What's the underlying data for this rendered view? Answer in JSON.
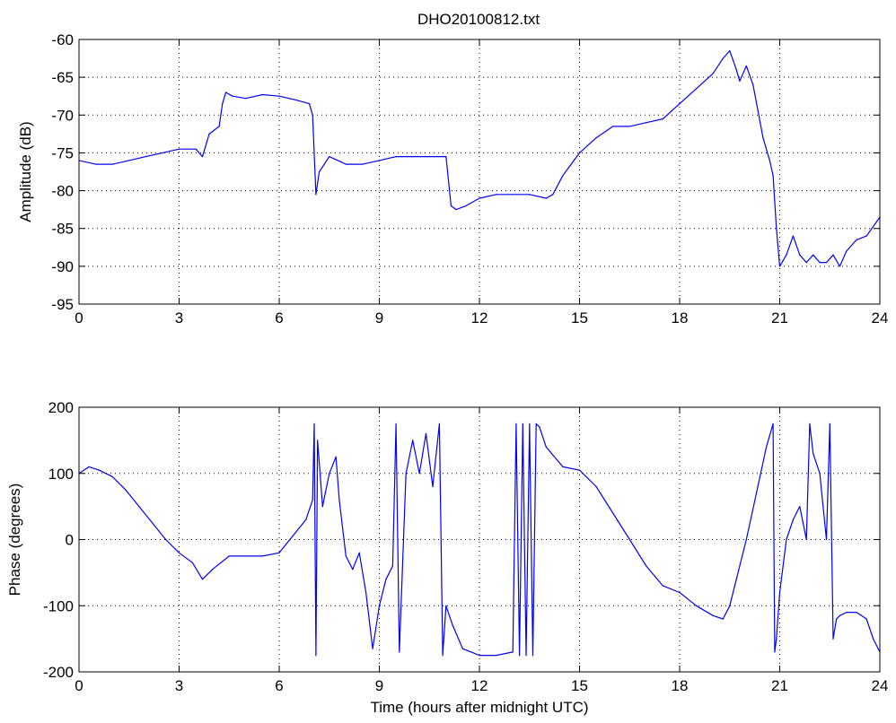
{
  "figure": {
    "title": "DHO20100812.txt"
  },
  "chart_data": [
    {
      "type": "line",
      "title": "DHO20100812.txt",
      "xlabel": "",
      "ylabel": "Amplitude (dB)",
      "xlim": [
        0,
        24
      ],
      "ylim": [
        -95,
        -60
      ],
      "xticks": [
        0,
        3,
        6,
        9,
        12,
        15,
        18,
        21,
        24
      ],
      "yticks": [
        -60,
        -65,
        -70,
        -75,
        -80,
        -85,
        -90,
        -95
      ],
      "grid": true,
      "color": "#0000ff",
      "series": [
        {
          "x": [
            0,
            0.5,
            1,
            1.5,
            2,
            2.5,
            3,
            3.5,
            3.7,
            3.9,
            4.2,
            4.3,
            4.4,
            4.6,
            5.0,
            5.5,
            6.0,
            6.5,
            6.9,
            7.0,
            7.1,
            7.2,
            7.5,
            8,
            8.5,
            9,
            9.5,
            10,
            10.5,
            11.0,
            11.15,
            11.3,
            11.6,
            12,
            12.5,
            13,
            13.5,
            14,
            14.2,
            14.5,
            15,
            15.5,
            16,
            16.5,
            17,
            17.5,
            18,
            18.5,
            19,
            19.3,
            19.5,
            19.7,
            19.8,
            20.0,
            20.2,
            20.5,
            20.7,
            20.8,
            20.9,
            21.0,
            21.2,
            21.4,
            21.6,
            21.8,
            22.0,
            22.2,
            22.4,
            22.6,
            22.8,
            23.0,
            23.3,
            23.6,
            24.0
          ],
          "y": [
            -76,
            -76.5,
            -76.5,
            -76,
            -75.5,
            -75,
            -74.5,
            -74.5,
            -75.5,
            -72.5,
            -71.5,
            -68.5,
            -67,
            -67.5,
            -67.8,
            -67.3,
            -67.5,
            -68,
            -68.5,
            -70,
            -80.5,
            -77.5,
            -75.5,
            -76.5,
            -76.5,
            -76,
            -75.5,
            -75.5,
            -75.5,
            -75.5,
            -82,
            -82.5,
            -82,
            -81,
            -80.5,
            -80.5,
            -80.5,
            -81,
            -80.5,
            -78,
            -75,
            -73,
            -71.5,
            -71.5,
            -71,
            -70.5,
            -68.5,
            -66.5,
            -64.5,
            -62.5,
            -61.5,
            -64,
            -65.5,
            -63.5,
            -66,
            -73,
            -76,
            -78,
            -85,
            -90,
            -88.5,
            -86,
            -88.5,
            -89.5,
            -88.5,
            -89.5,
            -89.5,
            -88.5,
            -90,
            -88,
            -86.5,
            -86,
            -83.5
          ]
        }
      ]
    },
    {
      "type": "line",
      "title": "",
      "xlabel": "Time (hours after midnight UTC)",
      "ylabel": "Phase (degrees)",
      "xlim": [
        0,
        24
      ],
      "ylim": [
        -200,
        200
      ],
      "xticks": [
        0,
        3,
        6,
        9,
        12,
        15,
        18,
        21,
        24
      ],
      "yticks": [
        200,
        100,
        0,
        -100,
        -200
      ],
      "grid": true,
      "color": "#0000ff",
      "series": [
        {
          "x": [
            0,
            0.3,
            0.6,
            1.0,
            1.4,
            1.8,
            2.2,
            2.6,
            3.0,
            3.4,
            3.7,
            4.0,
            4.5,
            5.0,
            5.5,
            6.0,
            6.4,
            6.8,
            7.0,
            7.05,
            7.1,
            7.15,
            7.3,
            7.5,
            7.7,
            7.8,
            8.0,
            8.2,
            8.4,
            8.6,
            8.8,
            9.0,
            9.2,
            9.4,
            9.5,
            9.6,
            9.8,
            10.0,
            10.2,
            10.4,
            10.6,
            10.8,
            10.9,
            11.0,
            11.2,
            11.5,
            12.0,
            12.5,
            13.0,
            13.1,
            13.2,
            13.3,
            13.4,
            13.5,
            13.6,
            13.7,
            13.8,
            14.0,
            14.5,
            15.0,
            15.5,
            16.0,
            16.5,
            17.0,
            17.5,
            18.0,
            18.5,
            19.0,
            19.3,
            19.5,
            19.7,
            20.0,
            20.3,
            20.6,
            20.8,
            20.85,
            20.9,
            21.0,
            21.2,
            21.4,
            21.6,
            21.8,
            21.9,
            22.0,
            22.2,
            22.4,
            22.5,
            22.6,
            22.7,
            22.8,
            23.0,
            23.3,
            23.6,
            23.8,
            24.0
          ],
          "y": [
            100,
            110,
            105,
            95,
            75,
            50,
            25,
            0,
            -20,
            -35,
            -60,
            -45,
            -25,
            -25,
            -25,
            -20,
            5,
            30,
            60,
            175,
            -175,
            150,
            50,
            100,
            125,
            60,
            -25,
            -45,
            -20,
            -80,
            -165,
            -100,
            -60,
            -40,
            175,
            -170,
            100,
            150,
            100,
            160,
            80,
            175,
            -175,
            -100,
            -130,
            -165,
            -175,
            -175,
            -170,
            175,
            -175,
            175,
            -175,
            175,
            -175,
            175,
            170,
            140,
            110,
            105,
            80,
            40,
            0,
            -40,
            -70,
            -80,
            -100,
            -115,
            -120,
            -100,
            -60,
            0,
            70,
            140,
            175,
            -170,
            -150,
            -80,
            0,
            30,
            50,
            0,
            175,
            130,
            100,
            0,
            175,
            -150,
            -120,
            -115,
            -110,
            -110,
            -120,
            -150,
            -170
          ]
        }
      ]
    }
  ]
}
